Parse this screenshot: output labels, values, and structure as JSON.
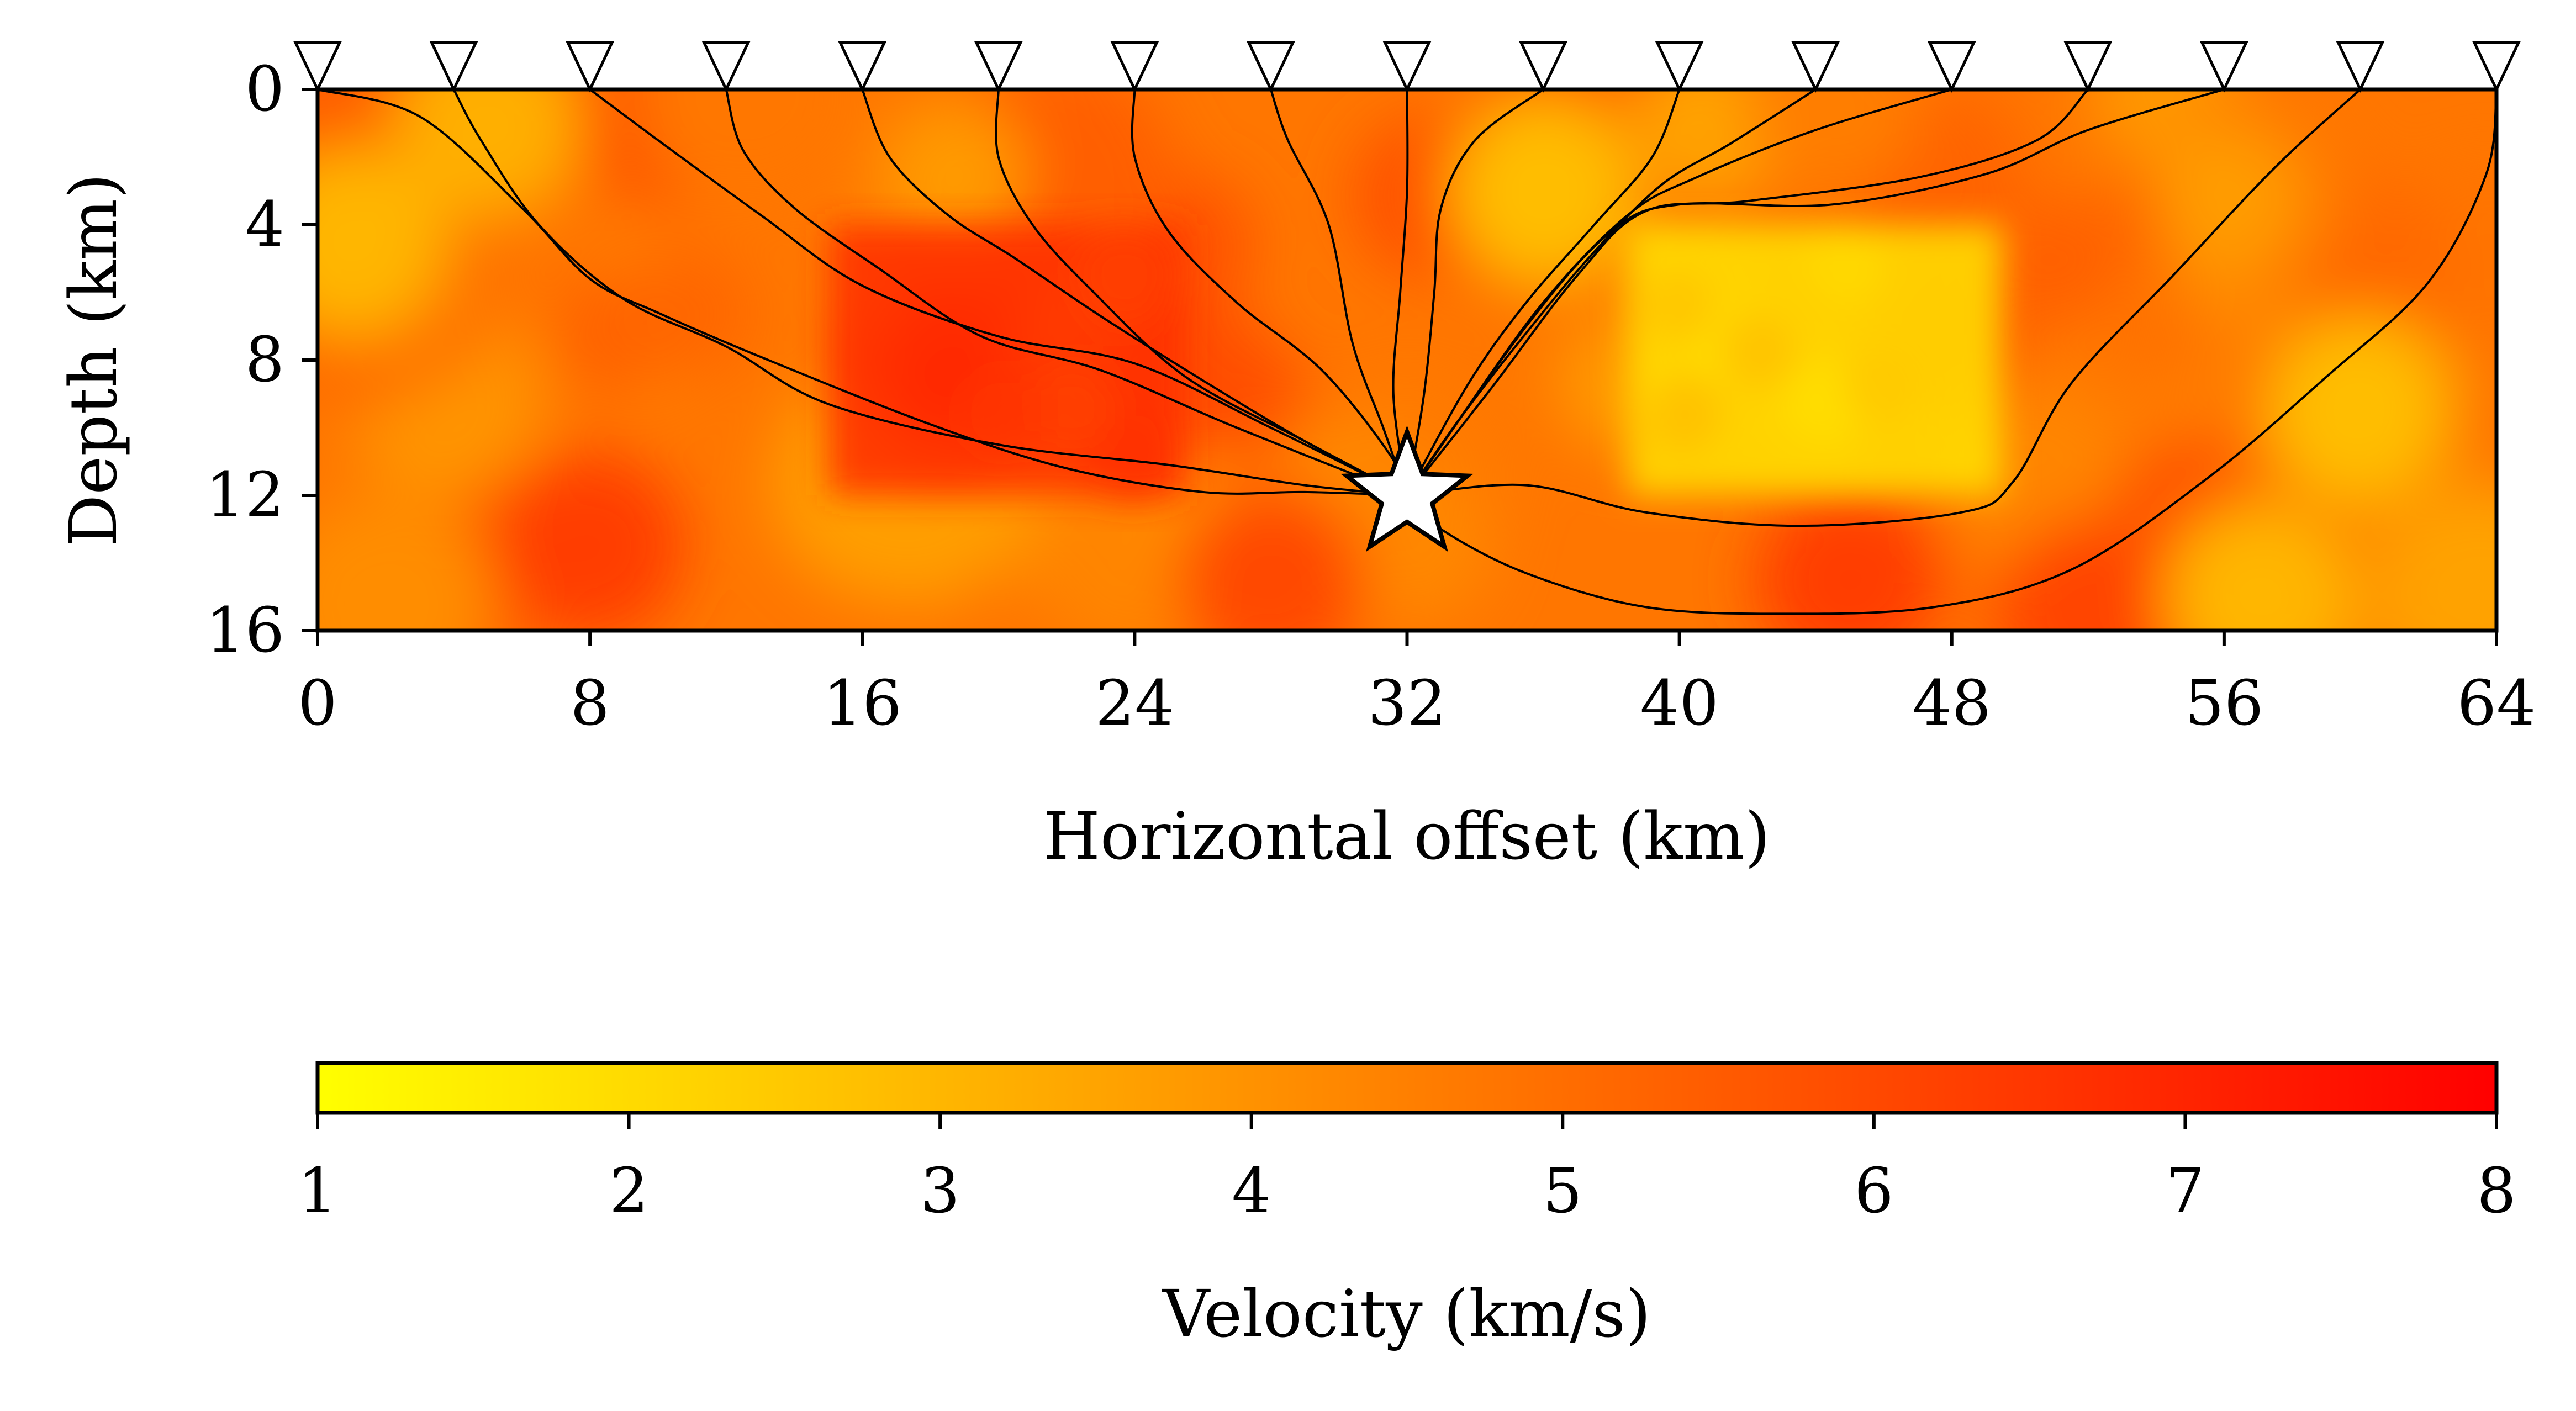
{
  "chart_data": {
    "type": "heatmap",
    "xlabel": "Horizontal offset (km)",
    "ylabel": "Depth (km)",
    "x_ticks": [
      "0",
      "8",
      "16",
      "24",
      "32",
      "40",
      "48",
      "56",
      "64"
    ],
    "y_ticks": [
      "0",
      "4",
      "8",
      "12",
      "16"
    ],
    "xlim": [
      0,
      64
    ],
    "ylim": [
      0,
      16
    ],
    "y_inverted": true,
    "grid": false,
    "velocity_model": {
      "background_range_kms": [
        3.5,
        6.0
      ],
      "high_velocity_block": {
        "x": [
          15,
          25.5
        ],
        "z": [
          4,
          12
        ],
        "velocity_kms": 6.7
      },
      "low_velocity_block": {
        "x": [
          38.5,
          49.5
        ],
        "z": [
          4,
          12
        ],
        "velocity_kms": 1.8
      },
      "hot_spots": [
        {
          "x": 18.5,
          "z": 8.5,
          "velocity_kms": 7.8
        },
        {
          "x": 8.0,
          "z": 13.5,
          "velocity_kms": 6.3
        },
        {
          "x": 28.0,
          "z": 14.5,
          "velocity_kms": 6.0
        },
        {
          "x": 45.0,
          "z": 14.5,
          "velocity_kms": 6.3
        },
        {
          "x": 52.0,
          "z": 15.5,
          "velocity_kms": 6.1
        },
        {
          "x": 1.0,
          "z": 4.5,
          "velocity_kms": 3.0
        },
        {
          "x": 5.0,
          "z": 1.0,
          "velocity_kms": 3.2
        },
        {
          "x": 36.0,
          "z": 3.0,
          "velocity_kms": 2.8
        },
        {
          "x": 60.0,
          "z": 9.5,
          "velocity_kms": 2.8
        },
        {
          "x": 57.0,
          "z": 15.0,
          "velocity_kms": 3.0
        }
      ]
    },
    "source": {
      "x": 32,
      "z": 12
    },
    "receivers": [
      {
        "x": 0,
        "z": 0
      },
      {
        "x": 4,
        "z": 0
      },
      {
        "x": 8,
        "z": 0
      },
      {
        "x": 12,
        "z": 0
      },
      {
        "x": 16,
        "z": 0
      },
      {
        "x": 20,
        "z": 0
      },
      {
        "x": 24,
        "z": 0
      },
      {
        "x": 28,
        "z": 0
      },
      {
        "x": 32,
        "z": 0
      },
      {
        "x": 36,
        "z": 0
      },
      {
        "x": 40,
        "z": 0
      },
      {
        "x": 44,
        "z": 0
      },
      {
        "x": 48,
        "z": 0
      },
      {
        "x": 52,
        "z": 0
      },
      {
        "x": 56,
        "z": 0
      },
      {
        "x": 60,
        "z": 0
      },
      {
        "x": 64,
        "z": 0
      }
    ],
    "rays": [
      {
        "receiver_x": 0,
        "path": [
          [
            0,
            0
          ],
          [
            3,
            0.8
          ],
          [
            6,
            3.5
          ],
          [
            8,
            5.6
          ],
          [
            10,
            6.6
          ],
          [
            13,
            7.9
          ],
          [
            18,
            9.9
          ],
          [
            22,
            11.2
          ],
          [
            26,
            11.9
          ],
          [
            29,
            11.9
          ],
          [
            32,
            12
          ]
        ]
      },
      {
        "receiver_x": 4,
        "path": [
          [
            4,
            0
          ],
          [
            4.8,
            1.5
          ],
          [
            6.5,
            4
          ],
          [
            9,
            6.2
          ],
          [
            12,
            7.6
          ],
          [
            15,
            9.3
          ],
          [
            20,
            10.5
          ],
          [
            25,
            11.1
          ],
          [
            29,
            11.7
          ],
          [
            32,
            12
          ]
        ]
      },
      {
        "receiver_x": 8,
        "path": [
          [
            8,
            0
          ],
          [
            10,
            1.5
          ],
          [
            13,
            3.7
          ],
          [
            16,
            5.8
          ],
          [
            20,
            7.3
          ],
          [
            24,
            8.1
          ],
          [
            28,
            10
          ],
          [
            32,
            12
          ]
        ]
      },
      {
        "receiver_x": 12,
        "path": [
          [
            12,
            0
          ],
          [
            12.5,
            1.8
          ],
          [
            14,
            3.5
          ],
          [
            16.5,
            5.3
          ],
          [
            19.5,
            7.3
          ],
          [
            23,
            8.3
          ],
          [
            27,
            10
          ],
          [
            32,
            12
          ]
        ]
      },
      {
        "receiver_x": 16,
        "path": [
          [
            16,
            0
          ],
          [
            16.8,
            2
          ],
          [
            18.5,
            3.7
          ],
          [
            20.5,
            5
          ],
          [
            23,
            6.7
          ],
          [
            26,
            8.6
          ],
          [
            29,
            10.4
          ],
          [
            32,
            12
          ]
        ]
      },
      {
        "receiver_x": 20,
        "path": [
          [
            20,
            0
          ],
          [
            20,
            2
          ],
          [
            21,
            4
          ],
          [
            22.8,
            6
          ],
          [
            25.5,
            8.5
          ],
          [
            29,
            10.4
          ],
          [
            32,
            12
          ]
        ]
      },
      {
        "receiver_x": 24,
        "path": [
          [
            24,
            0
          ],
          [
            24,
            2
          ],
          [
            25,
            4.2
          ],
          [
            27,
            6.3
          ],
          [
            29.5,
            8.3
          ],
          [
            31.5,
            10.8
          ],
          [
            32,
            12
          ]
        ]
      },
      {
        "receiver_x": 28,
        "path": [
          [
            28,
            0
          ],
          [
            28.5,
            1.5
          ],
          [
            29.7,
            4
          ],
          [
            30.4,
            7.5
          ],
          [
            31.3,
            10
          ],
          [
            32,
            12
          ]
        ]
      },
      {
        "receiver_x": 32,
        "path": [
          [
            32,
            0
          ],
          [
            32,
            3
          ],
          [
            31.8,
            6
          ],
          [
            31.6,
            9
          ],
          [
            32,
            12
          ]
        ]
      },
      {
        "receiver_x": 36,
        "path": [
          [
            36,
            0
          ],
          [
            34,
            1.5
          ],
          [
            33,
            3.5
          ],
          [
            32.8,
            6
          ],
          [
            32.5,
            9
          ],
          [
            32,
            12
          ]
        ]
      },
      {
        "receiver_x": 40,
        "path": [
          [
            40,
            0
          ],
          [
            39.2,
            2
          ],
          [
            37.5,
            4
          ],
          [
            35.5,
            6.3
          ],
          [
            33.8,
            8.7
          ],
          [
            32,
            12
          ]
        ]
      },
      {
        "receiver_x": 44,
        "path": [
          [
            44,
            0
          ],
          [
            41.5,
            1.6
          ],
          [
            39.5,
            2.8
          ],
          [
            37.5,
            4.8
          ],
          [
            35.5,
            7.2
          ],
          [
            33.5,
            9.8
          ],
          [
            32,
            12
          ]
        ]
      },
      {
        "receiver_x": 48,
        "path": [
          [
            48,
            0
          ],
          [
            44,
            1.2
          ],
          [
            40.5,
            2.6
          ],
          [
            38.5,
            3.7
          ],
          [
            36,
            6.3
          ],
          [
            33.5,
            9.8
          ],
          [
            32,
            12
          ]
        ]
      },
      {
        "receiver_x": 52,
        "path": [
          [
            52,
            0
          ],
          [
            50.5,
            1.5
          ],
          [
            47,
            2.6
          ],
          [
            42,
            3.3
          ],
          [
            39,
            3.6
          ],
          [
            37,
            5.5
          ],
          [
            34.5,
            8.8
          ],
          [
            32,
            12
          ]
        ]
      },
      {
        "receiver_x": 56,
        "path": [
          [
            56,
            0
          ],
          [
            52,
            1.2
          ],
          [
            49,
            2.5
          ],
          [
            44.5,
            3.4
          ],
          [
            40,
            3.4
          ],
          [
            38,
            4.2
          ],
          [
            35.5,
            7
          ],
          [
            32,
            12
          ]
        ]
      },
      {
        "receiver_x": 60,
        "path": [
          [
            60,
            0
          ],
          [
            57.5,
            2.3
          ],
          [
            54.5,
            5.5
          ],
          [
            51.5,
            8.7
          ],
          [
            49.8,
            11.6
          ],
          [
            48.3,
            12.5
          ],
          [
            43.5,
            12.9
          ],
          [
            39,
            12.5
          ],
          [
            35.5,
            11.7
          ],
          [
            32,
            12
          ]
        ]
      },
      {
        "receiver_x": 64,
        "path": [
          [
            64,
            0
          ],
          [
            63.7,
            2.5
          ],
          [
            62,
            5.7
          ],
          [
            59,
            8.5
          ],
          [
            55.5,
            11.5
          ],
          [
            51.5,
            14.2
          ],
          [
            47.5,
            15.3
          ],
          [
            43,
            15.5
          ],
          [
            39,
            15.3
          ],
          [
            35.5,
            14.3
          ],
          [
            33,
            13
          ],
          [
            32,
            12
          ]
        ]
      }
    ],
    "colorbar": {
      "label": "Velocity (km/s)",
      "ticks": [
        "1",
        "2",
        "3",
        "4",
        "5",
        "6",
        "7",
        "8"
      ],
      "range": [
        1,
        8
      ],
      "orientation": "horizontal",
      "placement": "bottom",
      "colormap": "autumn_r",
      "colors": [
        "#ffff00",
        "#ff0000"
      ]
    }
  }
}
